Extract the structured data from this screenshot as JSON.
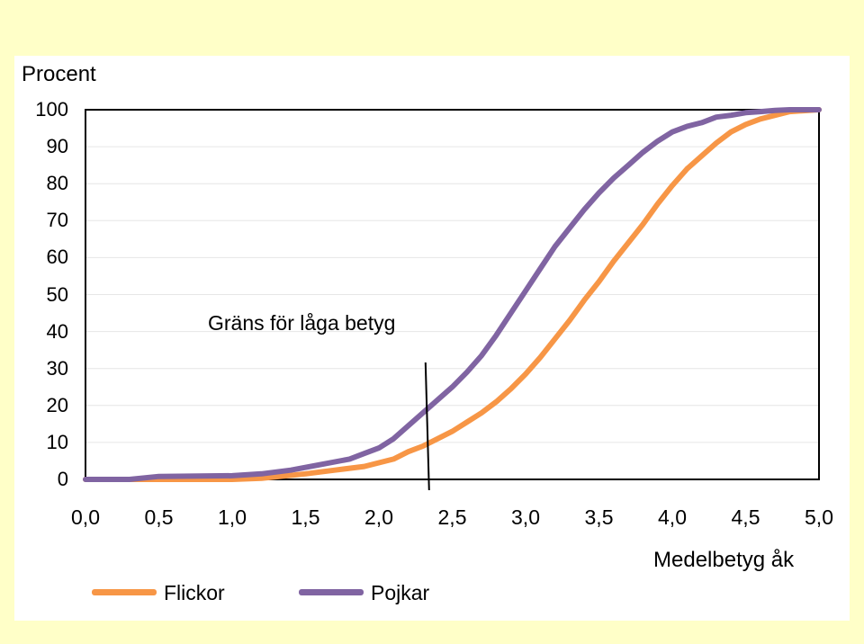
{
  "chart_data": {
    "type": "line",
    "ylabel": "Procent",
    "xlabel": "Medelbetyg åk",
    "xlim": [
      0,
      5
    ],
    "ylim": [
      0,
      100
    ],
    "yticks": [
      "0",
      "10",
      "20",
      "30",
      "40",
      "50",
      "60",
      "70",
      "80",
      "90",
      "100"
    ],
    "xticks": [
      "0,0",
      "0,5",
      "1,0",
      "1,5",
      "2,0",
      "2,5",
      "3,0",
      "3,5",
      "4,0",
      "4,5",
      "5,0"
    ],
    "grid": true,
    "annotation": {
      "text": "Gräns för låga betyg",
      "x": 2.33
    },
    "legend_position": "bottom-left",
    "series": [
      {
        "name": "Flickor",
        "color": "#f79646",
        "x": [
          0.0,
          0.5,
          1.0,
          1.2,
          1.5,
          1.7,
          1.9,
          2.0,
          2.1,
          2.2,
          2.3,
          2.4,
          2.5,
          2.6,
          2.7,
          2.8,
          2.9,
          3.0,
          3.1,
          3.2,
          3.3,
          3.4,
          3.5,
          3.6,
          3.7,
          3.8,
          3.9,
          4.0,
          4.1,
          4.2,
          4.3,
          4.4,
          4.5,
          4.6,
          4.7,
          4.8,
          5.0
        ],
        "values": [
          0,
          0,
          0,
          0.3,
          1.5,
          2.5,
          3.5,
          4.5,
          5.5,
          7.5,
          9,
          11,
          13,
          15.5,
          18,
          21,
          24.5,
          28.5,
          33,
          38,
          43,
          48.5,
          53.5,
          59,
          64,
          69,
          74.5,
          79.5,
          84,
          87.5,
          91,
          94,
          96,
          97.5,
          98.5,
          99.5,
          100
        ]
      },
      {
        "name": "Pojkar",
        "color": "#8064a2",
        "x": [
          0.0,
          0.3,
          0.5,
          1.0,
          1.2,
          1.4,
          1.6,
          1.8,
          1.9,
          2.0,
          2.1,
          2.2,
          2.3,
          2.4,
          2.5,
          2.6,
          2.7,
          2.8,
          2.9,
          3.0,
          3.1,
          3.2,
          3.3,
          3.4,
          3.5,
          3.6,
          3.7,
          3.8,
          3.9,
          4.0,
          4.1,
          4.2,
          4.3,
          4.4,
          4.5,
          4.6,
          4.7,
          4.8,
          5.0
        ],
        "values": [
          0,
          0,
          0.8,
          1,
          1.5,
          2.5,
          4,
          5.5,
          7,
          8.5,
          11,
          14.5,
          18,
          21.5,
          25,
          29,
          33.5,
          39,
          45,
          51,
          57,
          63,
          68,
          73,
          77.5,
          81.5,
          85,
          88.5,
          91.5,
          94,
          95.5,
          96.5,
          98,
          98.5,
          99.2,
          99.5,
          99.8,
          100,
          100
        ]
      }
    ]
  }
}
